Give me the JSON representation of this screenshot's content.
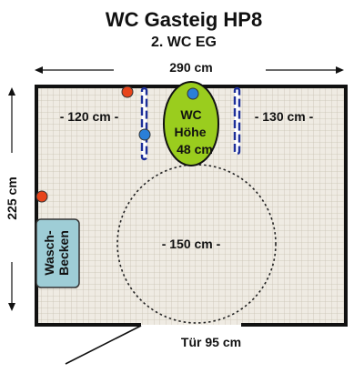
{
  "title": "WC Gasteig HP8",
  "subtitle": "2. WC EG",
  "width_label": "290 cm",
  "height_label": "225 cm",
  "left_clearance": "- 120 cm -",
  "right_clearance": "- 130 cm -",
  "toilet": {
    "line1": "WC",
    "line2": "Höhe",
    "line3": "48 cm"
  },
  "turning_circle": "- 150 cm -",
  "sink": {
    "line1": "Wasch-",
    "line2": "Becken"
  },
  "door_label": "Tür 95 cm",
  "colors": {
    "floor": "#efebe3",
    "tile_line": "#c9c2b2",
    "wall": "#111111",
    "toilet": "#9acd1e",
    "sink": "#9ecdd6",
    "red_button": "#e8441b",
    "blue_button": "#2a7fd8",
    "grab_bar": "#1d2f9a"
  }
}
